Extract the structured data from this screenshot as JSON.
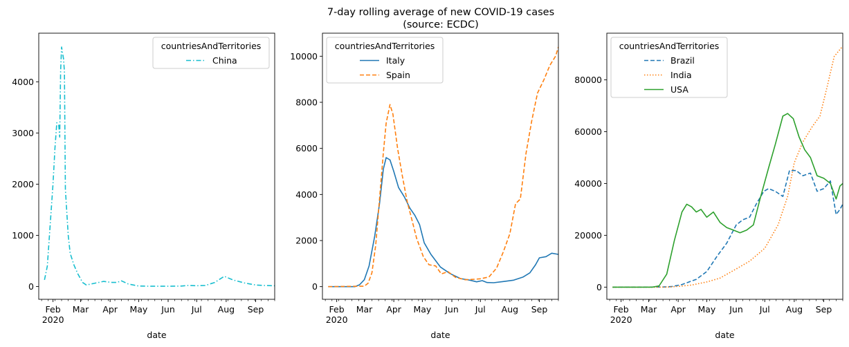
{
  "figure": {
    "title_line1": "7-day rolling average of new COVID-19 cases",
    "title_line2": "(source: ECDC)"
  },
  "chart_data": [
    {
      "type": "line",
      "title": "",
      "xlabel": "date",
      "ylabel": "",
      "legend_title": "countriesAndTerritories",
      "legend_position": "upper right",
      "x_range": [
        "2020-01-17",
        "2020-09-21"
      ],
      "x_ticks": [
        "Feb",
        "Mar",
        "Apr",
        "May",
        "Jun",
        "Jul",
        "Aug",
        "Sep"
      ],
      "year_label": "2020",
      "ylim": [
        -250,
        4950
      ],
      "y_ticks": [
        0,
        1000,
        2000,
        3000,
        4000
      ],
      "y_tick_labels": [
        "0",
        "1000",
        "2000",
        "3000",
        "4000"
      ],
      "series": [
        {
          "name": "China",
          "color": "#17becf",
          "dash": "dashdot",
          "points": [
            [
              "2020-01-23",
              130
            ],
            [
              "2020-01-26",
              400
            ],
            [
              "2020-01-29",
              1200
            ],
            [
              "2020-02-01",
              2000
            ],
            [
              "2020-02-03",
              2700
            ],
            [
              "2020-02-05",
              3200
            ],
            [
              "2020-02-07",
              3150
            ],
            [
              "2020-02-08",
              2920
            ],
            [
              "2020-02-09",
              4200
            ],
            [
              "2020-02-10",
              4680
            ],
            [
              "2020-02-12",
              4450
            ],
            [
              "2020-02-13",
              4200
            ],
            [
              "2020-02-14",
              1900
            ],
            [
              "2020-02-17",
              1000
            ],
            [
              "2020-02-19",
              650
            ],
            [
              "2020-02-23",
              420
            ],
            [
              "2020-02-27",
              250
            ],
            [
              "2020-03-03",
              80
            ],
            [
              "2020-03-07",
              30
            ],
            [
              "2020-03-15",
              60
            ],
            [
              "2020-03-25",
              100
            ],
            [
              "2020-04-03",
              80
            ],
            [
              "2020-04-08",
              80
            ],
            [
              "2020-04-13",
              110
            ],
            [
              "2020-04-20",
              50
            ],
            [
              "2020-05-01",
              10
            ],
            [
              "2020-05-15",
              5
            ],
            [
              "2020-06-01",
              5
            ],
            [
              "2020-06-15",
              10
            ],
            [
              "2020-06-22",
              20
            ],
            [
              "2020-07-01",
              15
            ],
            [
              "2020-07-10",
              20
            ],
            [
              "2020-07-20",
              80
            ],
            [
              "2020-07-30",
              200
            ],
            [
              "2020-08-08",
              130
            ],
            [
              "2020-08-20",
              70
            ],
            [
              "2020-09-01",
              30
            ],
            [
              "2020-09-10",
              20
            ],
            [
              "2020-09-21",
              15
            ]
          ]
        }
      ]
    },
    {
      "type": "line",
      "title": "",
      "xlabel": "date",
      "ylabel": "",
      "legend_title": "countriesAndTerritories",
      "legend_position": "upper left",
      "x_range": [
        "2020-01-17",
        "2020-09-21"
      ],
      "x_ticks": [
        "Feb",
        "Mar",
        "Apr",
        "May",
        "Jun",
        "Jul",
        "Aug",
        "Sep"
      ],
      "year_label": "2020",
      "ylim": [
        -550,
        11000
      ],
      "y_ticks": [
        0,
        2000,
        4000,
        6000,
        8000,
        10000
      ],
      "y_tick_labels": [
        "0",
        "2000",
        "4000",
        "6000",
        "8000",
        "10000"
      ],
      "series": [
        {
          "name": "Italy",
          "color": "#1f77b4",
          "dash": "solid",
          "points": [
            [
              "2020-01-23",
              0
            ],
            [
              "2020-02-20",
              0
            ],
            [
              "2020-02-25",
              80
            ],
            [
              "2020-03-01",
              300
            ],
            [
              "2020-03-06",
              900
            ],
            [
              "2020-03-12",
              2200
            ],
            [
              "2020-03-17",
              3600
            ],
            [
              "2020-03-21",
              5100
            ],
            [
              "2020-03-24",
              5600
            ],
            [
              "2020-03-28",
              5500
            ],
            [
              "2020-04-01",
              5000
            ],
            [
              "2020-04-06",
              4300
            ],
            [
              "2020-04-12",
              3900
            ],
            [
              "2020-04-18",
              3400
            ],
            [
              "2020-04-23",
              3100
            ],
            [
              "2020-04-28",
              2700
            ],
            [
              "2020-05-03",
              1900
            ],
            [
              "2020-05-10",
              1400
            ],
            [
              "2020-05-20",
              850
            ],
            [
              "2020-05-30",
              570
            ],
            [
              "2020-06-10",
              350
            ],
            [
              "2020-06-20",
              280
            ],
            [
              "2020-06-27",
              210
            ],
            [
              "2020-07-03",
              260
            ],
            [
              "2020-07-08",
              180
            ],
            [
              "2020-07-15",
              170
            ],
            [
              "2020-07-25",
              220
            ],
            [
              "2020-08-05",
              280
            ],
            [
              "2020-08-15",
              420
            ],
            [
              "2020-08-22",
              600
            ],
            [
              "2020-08-28",
              950
            ],
            [
              "2020-09-01",
              1250
            ],
            [
              "2020-09-08",
              1300
            ],
            [
              "2020-09-14",
              1450
            ],
            [
              "2020-09-21",
              1400
            ]
          ]
        },
        {
          "name": "Spain",
          "color": "#ff7f0e",
          "dash": "dashed",
          "points": [
            [
              "2020-01-23",
              0
            ],
            [
              "2020-03-01",
              20
            ],
            [
              "2020-03-05",
              150
            ],
            [
              "2020-03-09",
              600
            ],
            [
              "2020-03-13",
              1800
            ],
            [
              "2020-03-17",
              3800
            ],
            [
              "2020-03-21",
              5800
            ],
            [
              "2020-03-24",
              7100
            ],
            [
              "2020-03-28",
              7900
            ],
            [
              "2020-03-31",
              7500
            ],
            [
              "2020-04-05",
              6000
            ],
            [
              "2020-04-10",
              4800
            ],
            [
              "2020-04-15",
              3700
            ],
            [
              "2020-04-20",
              2900
            ],
            [
              "2020-04-25",
              2100
            ],
            [
              "2020-05-02",
              1300
            ],
            [
              "2020-05-08",
              950
            ],
            [
              "2020-05-15",
              900
            ],
            [
              "2020-05-21",
              550
            ],
            [
              "2020-05-28",
              650
            ],
            [
              "2020-06-05",
              400
            ],
            [
              "2020-06-15",
              300
            ],
            [
              "2020-06-25",
              320
            ],
            [
              "2020-07-01",
              340
            ],
            [
              "2020-07-10",
              420
            ],
            [
              "2020-07-18",
              800
            ],
            [
              "2020-07-25",
              1500
            ],
            [
              "2020-08-01",
              2300
            ],
            [
              "2020-08-07",
              3600
            ],
            [
              "2020-08-12",
              3800
            ],
            [
              "2020-08-18",
              5800
            ],
            [
              "2020-08-24",
              7200
            ],
            [
              "2020-08-30",
              8400
            ],
            [
              "2020-09-06",
              9000
            ],
            [
              "2020-09-12",
              9600
            ],
            [
              "2020-09-18",
              10000
            ],
            [
              "2020-09-21",
              10400
            ]
          ]
        }
      ]
    },
    {
      "type": "line",
      "title": "",
      "xlabel": "date",
      "ylabel": "",
      "legend_title": "countriesAndTerritories",
      "legend_position": "upper left",
      "x_range": [
        "2020-01-17",
        "2020-09-21"
      ],
      "x_ticks": [
        "Feb",
        "Mar",
        "Apr",
        "May",
        "Jun",
        "Jul",
        "Aug",
        "Sep"
      ],
      "year_label": "2020",
      "ylim": [
        -4700,
        98000
      ],
      "y_ticks": [
        0,
        20000,
        40000,
        60000,
        80000
      ],
      "y_tick_labels": [
        "0",
        "20000",
        "40000",
        "60000",
        "80000"
      ],
      "series": [
        {
          "name": "Brazil",
          "color": "#1f77b4",
          "dash": "dashed",
          "points": [
            [
              "2020-01-23",
              0
            ],
            [
              "2020-03-15",
              50
            ],
            [
              "2020-03-25",
              200
            ],
            [
              "2020-04-05",
              1000
            ],
            [
              "2020-04-20",
              3000
            ],
            [
              "2020-05-01",
              6000
            ],
            [
              "2020-05-12",
              12000
            ],
            [
              "2020-05-22",
              17000
            ],
            [
              "2020-06-01",
              24000
            ],
            [
              "2020-06-08",
              26000
            ],
            [
              "2020-06-15",
              27000
            ],
            [
              "2020-06-22",
              32000
            ],
            [
              "2020-06-30",
              37000
            ],
            [
              "2020-07-05",
              38000
            ],
            [
              "2020-07-12",
              37000
            ],
            [
              "2020-07-20",
              35000
            ],
            [
              "2020-07-27",
              45000
            ],
            [
              "2020-08-03",
              45000
            ],
            [
              "2020-08-10",
              43000
            ],
            [
              "2020-08-18",
              44000
            ],
            [
              "2020-08-25",
              37000
            ],
            [
              "2020-09-01",
              38000
            ],
            [
              "2020-09-08",
              41000
            ],
            [
              "2020-09-14",
              28000
            ],
            [
              "2020-09-18",
              30000
            ],
            [
              "2020-09-21",
              32000
            ]
          ]
        },
        {
          "name": "India",
          "color": "#ff7f0e",
          "dash": "dotted",
          "points": [
            [
              "2020-01-23",
              0
            ],
            [
              "2020-03-20",
              0
            ],
            [
              "2020-04-01",
              300
            ],
            [
              "2020-04-15",
              800
            ],
            [
              "2020-05-01",
              2000
            ],
            [
              "2020-05-15",
              3500
            ],
            [
              "2020-06-01",
              7000
            ],
            [
              "2020-06-15",
              10000
            ],
            [
              "2020-07-01",
              15000
            ],
            [
              "2020-07-15",
              24000
            ],
            [
              "2020-07-25",
              35000
            ],
            [
              "2020-08-01",
              48000
            ],
            [
              "2020-08-10",
              56000
            ],
            [
              "2020-08-20",
              62000
            ],
            [
              "2020-08-28",
              66000
            ],
            [
              "2020-09-05",
              78000
            ],
            [
              "2020-09-12",
              89000
            ],
            [
              "2020-09-21",
              93000
            ]
          ]
        },
        {
          "name": "USA",
          "color": "#2ca02c",
          "dash": "solid",
          "points": [
            [
              "2020-01-23",
              0
            ],
            [
              "2020-03-05",
              0
            ],
            [
              "2020-03-12",
              500
            ],
            [
              "2020-03-20",
              5000
            ],
            [
              "2020-03-28",
              18000
            ],
            [
              "2020-04-05",
              29000
            ],
            [
              "2020-04-10",
              32000
            ],
            [
              "2020-04-15",
              31000
            ],
            [
              "2020-04-20",
              29000
            ],
            [
              "2020-04-25",
              30000
            ],
            [
              "2020-05-01",
              27000
            ],
            [
              "2020-05-08",
              29000
            ],
            [
              "2020-05-15",
              25000
            ],
            [
              "2020-05-22",
              23000
            ],
            [
              "2020-05-29",
              22000
            ],
            [
              "2020-06-05",
              21000
            ],
            [
              "2020-06-12",
              22000
            ],
            [
              "2020-06-19",
              24000
            ],
            [
              "2020-06-26",
              34000
            ],
            [
              "2020-07-05",
              46000
            ],
            [
              "2020-07-12",
              55000
            ],
            [
              "2020-07-20",
              66000
            ],
            [
              "2020-07-25",
              67000
            ],
            [
              "2020-07-31",
              65000
            ],
            [
              "2020-08-06",
              58000
            ],
            [
              "2020-08-12",
              53000
            ],
            [
              "2020-08-18",
              50000
            ],
            [
              "2020-08-25",
              43000
            ],
            [
              "2020-09-01",
              42000
            ],
            [
              "2020-09-08",
              40000
            ],
            [
              "2020-09-14",
              34000
            ],
            [
              "2020-09-18",
              39000
            ],
            [
              "2020-09-21",
              40000
            ]
          ]
        }
      ]
    }
  ]
}
